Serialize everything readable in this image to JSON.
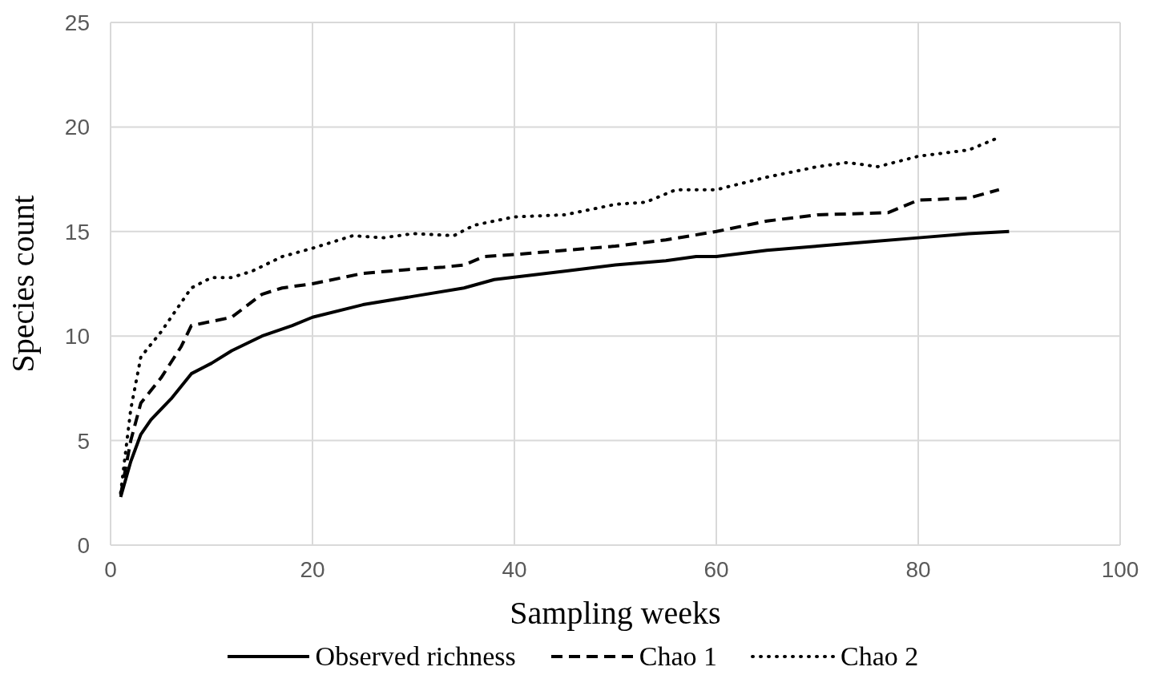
{
  "chart_data": {
    "type": "line",
    "xlabel": "Sampling weeks",
    "ylabel": "Species count",
    "xlim": [
      0,
      100
    ],
    "xticks": [
      0,
      20,
      40,
      60,
      80,
      100
    ],
    "ylim": [
      0,
      25
    ],
    "yticks": [
      0,
      5,
      10,
      15,
      20,
      25
    ],
    "grid": true,
    "legend": "bottom",
    "marker": "none",
    "series": [
      {
        "name": "Observed richness",
        "color": "#000000",
        "line_style": "solid",
        "x": [
          1,
          2,
          3,
          4,
          6,
          8,
          10,
          12,
          15,
          18,
          20,
          25,
          30,
          35,
          38,
          45,
          50,
          55,
          58,
          60,
          65,
          70,
          75,
          80,
          85,
          89
        ],
        "values": [
          2.3,
          4,
          5.3,
          6,
          7,
          8.2,
          8.7,
          9.3,
          10,
          10.5,
          10.9,
          11.5,
          11.9,
          12.3,
          12.7,
          13.1,
          13.4,
          13.6,
          13.8,
          13.8,
          14.1,
          14.3,
          14.5,
          14.7,
          14.9,
          15
        ]
      },
      {
        "name": "Chao 1",
        "color": "#000000",
        "line_style": "dashed",
        "x": [
          1,
          2,
          3,
          5,
          7,
          8,
          10,
          12,
          15,
          17,
          20,
          25,
          30,
          33,
          35,
          37,
          40,
          45,
          50,
          55,
          60,
          65,
          70,
          77,
          80,
          85,
          88
        ],
        "values": [
          2.4,
          5,
          6.8,
          8,
          9.5,
          10.5,
          10.7,
          10.9,
          12,
          12.3,
          12.5,
          13,
          13.2,
          13.3,
          13.4,
          13.8,
          13.9,
          14.1,
          14.3,
          14.6,
          15,
          15.5,
          15.8,
          15.9,
          16.5,
          16.6,
          17
        ]
      },
      {
        "name": "Chao 2",
        "color": "#000000",
        "line_style": "dotted",
        "x": [
          1,
          2,
          3,
          5,
          8,
          10,
          12,
          14,
          17,
          20,
          24,
          27,
          30,
          34,
          36,
          40,
          45,
          50,
          53,
          56,
          60,
          65,
          70,
          73,
          76,
          80,
          85,
          88
        ],
        "values": [
          2.5,
          6.5,
          9,
          10.2,
          12.3,
          12.8,
          12.8,
          13.1,
          13.8,
          14.2,
          14.8,
          14.7,
          14.9,
          14.8,
          15.3,
          15.7,
          15.8,
          16.3,
          16.4,
          17,
          17,
          17.6,
          18.1,
          18.3,
          18.1,
          18.6,
          18.9,
          19.5
        ]
      }
    ]
  }
}
